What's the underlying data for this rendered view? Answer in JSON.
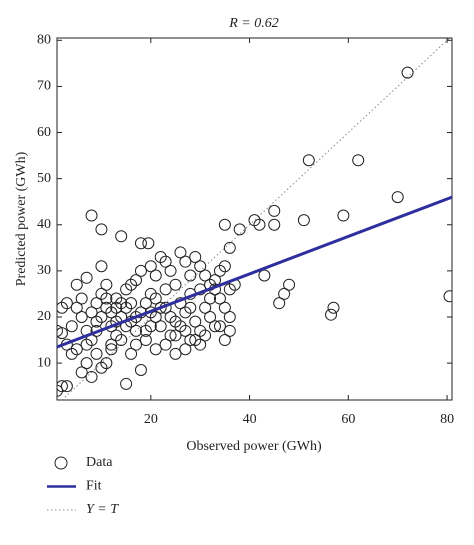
{
  "chart_data": {
    "type": "scatter",
    "title": "R = 0.62",
    "x_label": "Observed power (GWh)",
    "y_label": "Predicted power (GWh)",
    "xlim": [
      1,
      81
    ],
    "ylim": [
      2,
      80.5
    ],
    "xticks": [
      20,
      40,
      60,
      80
    ],
    "yticks": [
      10,
      20,
      30,
      40,
      50,
      60,
      70,
      80
    ],
    "series": [
      {
        "name": "Data",
        "color": "#222222",
        "marker": "circle",
        "x": [
          1,
          2,
          3,
          1,
          2,
          3,
          4,
          5,
          4,
          3,
          2,
          5,
          6,
          7,
          6,
          7,
          8,
          7,
          8,
          6,
          9,
          10,
          11,
          12,
          9,
          10,
          11,
          12,
          13,
          14,
          15,
          16,
          17,
          18,
          19,
          20,
          21,
          22,
          23,
          24,
          25,
          26,
          27,
          28,
          29,
          30,
          31,
          32,
          33,
          34,
          35,
          36,
          35,
          38,
          41,
          42,
          45,
          45,
          43,
          46,
          47,
          48,
          51,
          52,
          57,
          56.5,
          59,
          62,
          70,
          72,
          80.5,
          8,
          10,
          14,
          18,
          19.5,
          10,
          11,
          13,
          15,
          16,
          17,
          18,
          20,
          21,
          22,
          23,
          24,
          25,
          26,
          27,
          28,
          29,
          30,
          31,
          32,
          33,
          34,
          35,
          36,
          37,
          36,
          36,
          35,
          33,
          31,
          30,
          28,
          27,
          25,
          23,
          21,
          19,
          17,
          16,
          15,
          18,
          14,
          13,
          12,
          11,
          10,
          9,
          8,
          7,
          14,
          16,
          19,
          20,
          22,
          24,
          26,
          28,
          30,
          32,
          34,
          29,
          27,
          25,
          23,
          21,
          20,
          17,
          15,
          13,
          12,
          9,
          5
        ],
        "values": [
          4,
          5,
          5,
          17,
          16.5,
          14,
          12,
          13,
          18,
          23,
          22,
          22,
          24,
          28.5,
          20,
          17,
          15,
          10,
          7,
          8,
          12,
          9,
          10,
          13,
          17,
          20,
          22,
          18,
          16,
          20,
          22,
          19,
          17,
          21,
          23,
          25,
          20,
          18,
          22,
          16,
          19,
          23,
          21,
          25,
          19,
          17,
          22,
          24,
          28,
          30,
          31,
          35,
          40,
          39,
          41,
          40,
          43,
          40,
          29,
          23,
          25,
          27,
          41,
          54,
          22,
          20.5,
          42,
          54,
          46,
          73,
          24.5,
          42,
          39,
          37.5,
          36,
          36,
          31,
          27,
          24,
          26,
          23,
          28,
          30,
          31,
          29,
          33,
          32,
          30,
          27,
          34,
          32,
          29,
          33,
          31,
          29,
          27,
          26,
          24,
          22,
          26,
          27,
          20,
          17,
          15,
          18,
          16,
          14,
          15,
          13,
          12,
          14,
          13,
          15,
          14,
          12,
          5.5,
          8.5,
          15,
          19,
          21,
          24,
          25,
          19,
          21,
          14,
          23,
          27,
          17,
          18,
          22,
          20,
          18,
          22,
          26,
          20,
          18,
          15,
          17,
          16,
          26,
          24,
          21,
          20,
          18,
          22,
          14,
          23,
          27
        ]
      },
      {
        "name": "Fit",
        "color": "#2e2e9e",
        "marker": "line",
        "x": [
          1,
          81
        ],
        "values": [
          13.5,
          46
        ]
      },
      {
        "name": "Y = T",
        "color": "#888888",
        "marker": "dotted",
        "x": [
          2,
          80.5
        ],
        "values": [
          2,
          80.5
        ]
      }
    ]
  }
}
